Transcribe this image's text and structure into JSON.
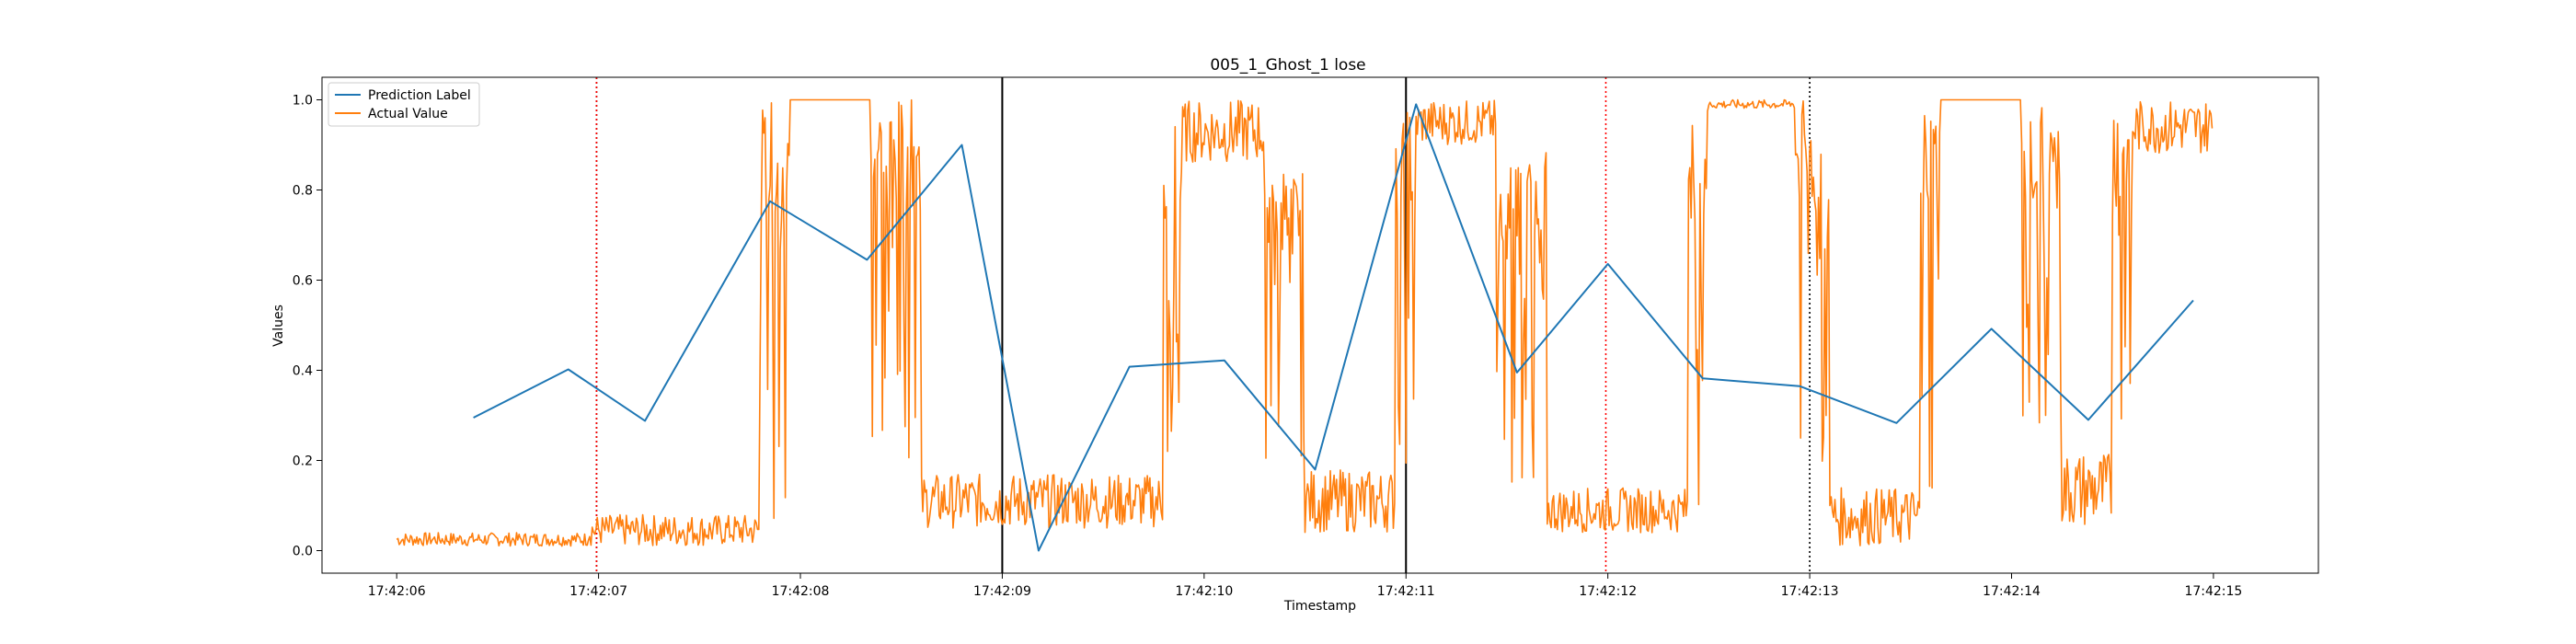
{
  "chart_data": {
    "type": "line",
    "title": "005_1_Ghost_1 lose",
    "xlabel": "Timestamp",
    "ylabel": "Values",
    "x_unit": "seconds after 17:42:06",
    "xlim": [
      -0.37,
      9.52
    ],
    "ylim": [
      -0.05,
      1.05
    ],
    "grid": false,
    "legend_position": "top-left",
    "x_ticks": [
      {
        "value": 0,
        "label": "17:42:06"
      },
      {
        "value": 1,
        "label": "17:42:07"
      },
      {
        "value": 2,
        "label": "17:42:08"
      },
      {
        "value": 3,
        "label": "17:42:09"
      },
      {
        "value": 4,
        "label": "17:42:10"
      },
      {
        "value": 5,
        "label": "17:42:11"
      },
      {
        "value": 6,
        "label": "17:42:12"
      },
      {
        "value": 7,
        "label": "17:42:13"
      },
      {
        "value": 8,
        "label": "17:42:14"
      },
      {
        "value": 9,
        "label": "17:42:15"
      }
    ],
    "y_ticks": [
      {
        "value": 0.0,
        "label": "0.0"
      },
      {
        "value": 0.2,
        "label": "0.2"
      },
      {
        "value": 0.4,
        "label": "0.4"
      },
      {
        "value": 0.6,
        "label": "0.6"
      },
      {
        "value": 0.8,
        "label": "0.8"
      },
      {
        "value": 1.0,
        "label": "1.0"
      }
    ],
    "series": [
      {
        "name": "Prediction Label",
        "color": "#1f77b4",
        "x": [
          0.38,
          0.85,
          1.23,
          1.85,
          2.33,
          2.8,
          3.18,
          3.63,
          4.1,
          4.55,
          5.05,
          5.55,
          6.0,
          6.47,
          6.95,
          7.43,
          7.9,
          8.38,
          8.9
        ],
        "y": [
          0.295,
          0.402,
          0.288,
          0.775,
          0.645,
          0.9,
          0.0,
          0.408,
          0.422,
          0.18,
          0.99,
          0.395,
          0.636,
          0.382,
          0.365,
          0.283,
          0.492,
          0.29,
          0.555
        ]
      },
      {
        "name": "Actual Value",
        "color": "#ff7f0e",
        "segments": [
          {
            "x_start": 0.0,
            "x_end": 0.95,
            "low": 0.01,
            "high": 0.04
          },
          {
            "x_start": 0.95,
            "x_end": 1.8,
            "low": 0.01,
            "high": 0.08
          },
          {
            "x_start": 1.8,
            "x_end": 1.95,
            "low": 0.02,
            "high": 1.0
          },
          {
            "x_start": 1.95,
            "x_end": 2.35,
            "low": 1.0,
            "high": 1.0
          },
          {
            "x_start": 2.35,
            "x_end": 2.6,
            "low": 0.2,
            "high": 1.0
          },
          {
            "x_start": 2.6,
            "x_end": 3.8,
            "low": 0.05,
            "high": 0.17
          },
          {
            "x_start": 3.8,
            "x_end": 3.9,
            "low": 0.1,
            "high": 1.0
          },
          {
            "x_start": 3.9,
            "x_end": 4.3,
            "low": 0.86,
            "high": 1.0
          },
          {
            "x_start": 4.3,
            "x_end": 4.5,
            "low": 0.2,
            "high": 0.85
          },
          {
            "x_start": 4.5,
            "x_end": 4.95,
            "low": 0.04,
            "high": 0.18
          },
          {
            "x_start": 4.95,
            "x_end": 5.05,
            "low": 0.1,
            "high": 1.0
          },
          {
            "x_start": 5.05,
            "x_end": 5.45,
            "low": 0.9,
            "high": 1.0
          },
          {
            "x_start": 5.45,
            "x_end": 5.7,
            "low": 0.15,
            "high": 0.9
          },
          {
            "x_start": 5.7,
            "x_end": 6.4,
            "low": 0.04,
            "high": 0.14
          },
          {
            "x_start": 6.4,
            "x_end": 6.5,
            "low": 0.1,
            "high": 1.0
          },
          {
            "x_start": 6.5,
            "x_end": 6.93,
            "low": 0.98,
            "high": 1.0
          },
          {
            "x_start": 6.93,
            "x_end": 7.1,
            "low": 0.15,
            "high": 1.0
          },
          {
            "x_start": 7.1,
            "x_end": 7.55,
            "low": 0.01,
            "high": 0.14
          },
          {
            "x_start": 7.55,
            "x_end": 7.65,
            "low": 0.1,
            "high": 1.0
          },
          {
            "x_start": 7.65,
            "x_end": 8.05,
            "low": 1.0,
            "high": 1.0
          },
          {
            "x_start": 8.05,
            "x_end": 8.25,
            "low": 0.2,
            "high": 1.0
          },
          {
            "x_start": 8.25,
            "x_end": 8.5,
            "low": 0.05,
            "high": 0.22
          },
          {
            "x_start": 8.5,
            "x_end": 8.6,
            "low": 0.1,
            "high": 1.0
          },
          {
            "x_start": 8.6,
            "x_end": 9.0,
            "low": 0.88,
            "high": 1.0
          }
        ]
      }
    ],
    "vertical_markers": [
      {
        "x": 0.99,
        "color": "#000000",
        "style": "dotted"
      },
      {
        "x": 0.99,
        "color": "#ff0000",
        "style": "dotted"
      },
      {
        "x": 3.0,
        "color": "#000000",
        "style": "solid"
      },
      {
        "x": 5.0,
        "color": "#000000",
        "style": "solid"
      },
      {
        "x": 5.99,
        "color": "#ff0000",
        "style": "dotted"
      },
      {
        "x": 7.0,
        "color": "#000000",
        "style": "dotted"
      }
    ]
  }
}
